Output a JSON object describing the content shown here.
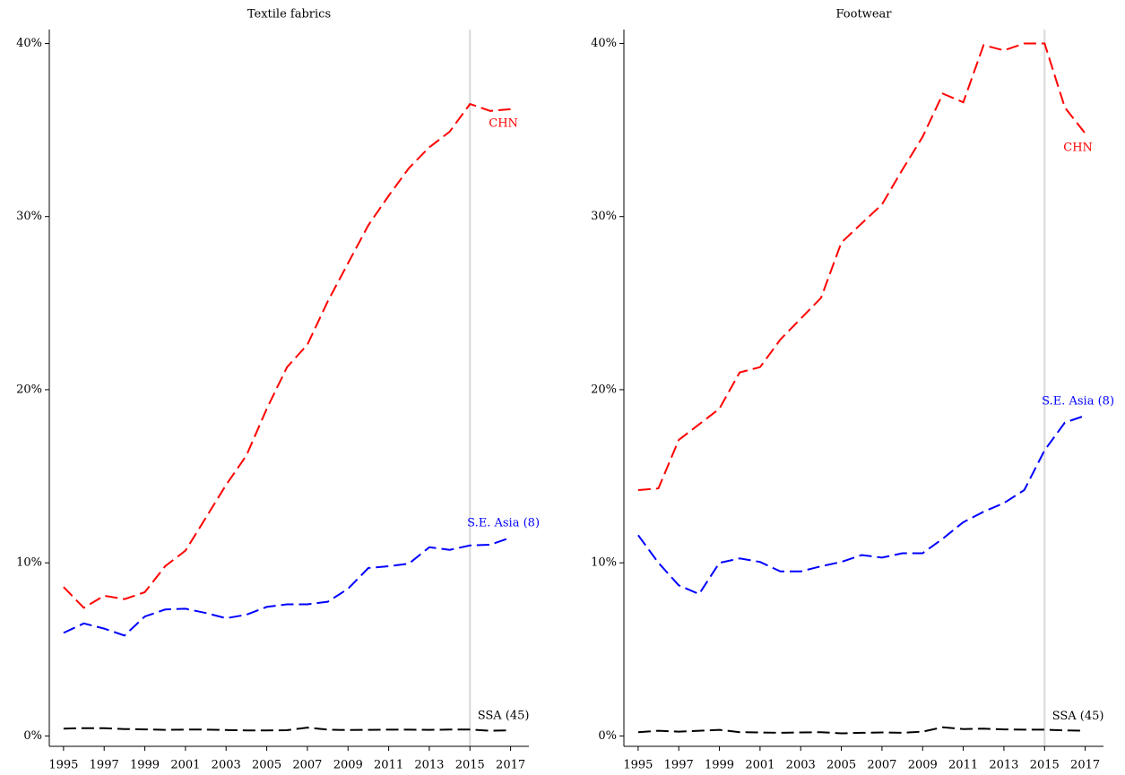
{
  "chart_data": [
    {
      "type": "line",
      "title": "Textile fabrics",
      "x": [
        1995,
        1996,
        1997,
        1998,
        1999,
        2000,
        2001,
        2002,
        2003,
        2004,
        2005,
        2006,
        2007,
        2008,
        2009,
        2010,
        2011,
        2012,
        2013,
        2014,
        2015,
        2016,
        2017
      ],
      "xlim": [
        1994.3,
        2017.9
      ],
      "xticks": [
        1995,
        1997,
        1999,
        2001,
        2003,
        2005,
        2007,
        2009,
        2011,
        2013,
        2015,
        2017
      ],
      "ylim": [
        -0.6,
        40.8
      ],
      "yticks": [
        {
          "value": 0,
          "label": "0%"
        },
        {
          "value": 10,
          "label": "10%"
        },
        {
          "value": 20,
          "label": "20%"
        },
        {
          "value": 30,
          "label": "30%"
        },
        {
          "value": 40,
          "label": "40%"
        }
      ],
      "vline": 2015,
      "series": [
        {
          "name": "CHN",
          "color": "#ff0000",
          "values": [
            8.6,
            7.4,
            8.1,
            7.9,
            8.3,
            9.8,
            10.7,
            12.6,
            14.5,
            16.2,
            18.9,
            21.3,
            22.6,
            25.1,
            27.3,
            29.5,
            31.2,
            32.8,
            34.0,
            34.9,
            36.5,
            36.1,
            36.2
          ]
        },
        {
          "name": "S.E. Asia (8)",
          "color": "#0000ff",
          "values": [
            5.95,
            6.5,
            6.2,
            5.8,
            6.9,
            7.3,
            7.35,
            7.1,
            6.8,
            7.0,
            7.45,
            7.6,
            7.6,
            7.75,
            8.5,
            9.7,
            9.8,
            9.95,
            10.9,
            10.75,
            11.0,
            11.05,
            11.45
          ]
        },
        {
          "name": "SSA (45)",
          "color": "#000000",
          "values": [
            0.42,
            0.45,
            0.45,
            0.4,
            0.38,
            0.35,
            0.37,
            0.37,
            0.34,
            0.32,
            0.32,
            0.33,
            0.48,
            0.36,
            0.34,
            0.35,
            0.36,
            0.36,
            0.35,
            0.37,
            0.37,
            0.3,
            0.32
          ]
        }
      ]
    },
    {
      "type": "line",
      "title": "Footwear",
      "x": [
        1995,
        1996,
        1997,
        1998,
        1999,
        2000,
        2001,
        2002,
        2003,
        2004,
        2005,
        2006,
        2007,
        2008,
        2009,
        2010,
        2011,
        2012,
        2013,
        2014,
        2015,
        2016,
        2017
      ],
      "xlim": [
        1994.3,
        2017.9
      ],
      "xticks": [
        1995,
        1997,
        1999,
        2001,
        2003,
        2005,
        2007,
        2009,
        2011,
        2013,
        2015,
        2017
      ],
      "ylim": [
        -0.6,
        40.8
      ],
      "yticks": [
        {
          "value": 0,
          "label": "0%"
        },
        {
          "value": 10,
          "label": "10%"
        },
        {
          "value": 20,
          "label": "20%"
        },
        {
          "value": 30,
          "label": "30%"
        },
        {
          "value": 40,
          "label": "40%"
        }
      ],
      "vline": 2015,
      "series": [
        {
          "name": "CHN",
          "color": "#ff0000",
          "values": [
            14.2,
            14.3,
            17.1,
            18.0,
            18.9,
            21.0,
            21.3,
            22.9,
            24.1,
            25.3,
            28.5,
            29.6,
            30.7,
            32.7,
            34.6,
            37.1,
            36.6,
            39.9,
            39.6,
            40.0,
            40.0,
            36.3,
            34.8
          ]
        },
        {
          "name": "S.E. Asia (8)",
          "color": "#0000ff",
          "values": [
            11.6,
            10.0,
            8.7,
            8.2,
            10.0,
            10.25,
            10.05,
            9.5,
            9.5,
            9.8,
            10.05,
            10.45,
            10.3,
            10.55,
            10.55,
            11.4,
            12.35,
            12.95,
            13.45,
            14.2,
            16.5,
            18.1,
            18.5
          ]
        },
        {
          "name": "SSA (45)",
          "color": "#000000",
          "values": [
            0.22,
            0.3,
            0.25,
            0.3,
            0.35,
            0.22,
            0.2,
            0.18,
            0.2,
            0.22,
            0.15,
            0.18,
            0.2,
            0.18,
            0.25,
            0.5,
            0.4,
            0.42,
            0.38,
            0.36,
            0.36,
            0.32,
            0.3
          ]
        }
      ]
    }
  ]
}
